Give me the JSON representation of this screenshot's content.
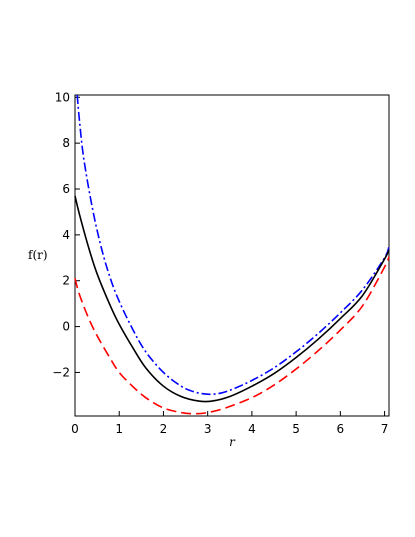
{
  "chart_data": {
    "type": "line",
    "xlabel": "r",
    "ylabel": "f(r)",
    "xlim": [
      0,
      7.1
    ],
    "ylim": [
      -3.9,
      10.1
    ],
    "x_ticks": [
      0,
      1,
      2,
      3,
      4,
      5,
      6,
      7
    ],
    "y_ticks": [
      -2,
      0,
      2,
      4,
      6,
      8,
      10
    ],
    "grid": false,
    "legend": "none",
    "series": [
      {
        "color": "#0000ff",
        "dash": "dash-dot",
        "points": [
          [
            0.05,
            10.1
          ],
          [
            0.1,
            9.0
          ],
          [
            0.2,
            7.3
          ],
          [
            0.4,
            5.1
          ],
          [
            0.6,
            3.4
          ],
          [
            0.8,
            2.1
          ],
          [
            1.0,
            1.1
          ],
          [
            1.3,
            -0.1
          ],
          [
            1.6,
            -1.1
          ],
          [
            2.0,
            -2.0
          ],
          [
            2.4,
            -2.6
          ],
          [
            2.7,
            -2.85
          ],
          [
            3.0,
            -2.95
          ],
          [
            3.3,
            -2.9
          ],
          [
            3.6,
            -2.7
          ],
          [
            4.0,
            -2.35
          ],
          [
            4.5,
            -1.8
          ],
          [
            5.0,
            -1.1
          ],
          [
            5.5,
            -0.3
          ],
          [
            6.0,
            0.6
          ],
          [
            6.5,
            1.6
          ],
          [
            7.0,
            3.0
          ],
          [
            7.1,
            3.5
          ]
        ]
      },
      {
        "color": "#000000",
        "dash": "solid",
        "points": [
          [
            0.0,
            5.7
          ],
          [
            0.1,
            4.9
          ],
          [
            0.3,
            3.5
          ],
          [
            0.5,
            2.3
          ],
          [
            0.8,
            0.9
          ],
          [
            1.0,
            0.1
          ],
          [
            1.3,
            -0.9
          ],
          [
            1.6,
            -1.8
          ],
          [
            2.0,
            -2.6
          ],
          [
            2.4,
            -3.05
          ],
          [
            2.8,
            -3.25
          ],
          [
            3.1,
            -3.25
          ],
          [
            3.5,
            -3.05
          ],
          [
            4.0,
            -2.6
          ],
          [
            4.5,
            -2.05
          ],
          [
            5.0,
            -1.35
          ],
          [
            5.5,
            -0.55
          ],
          [
            6.0,
            0.35
          ],
          [
            6.5,
            1.35
          ],
          [
            7.0,
            2.95
          ],
          [
            7.1,
            3.35
          ]
        ]
      },
      {
        "color": "#ff0000",
        "dash": "dashed",
        "points": [
          [
            0.0,
            2.1
          ],
          [
            0.1,
            1.4
          ],
          [
            0.3,
            0.4
          ],
          [
            0.5,
            -0.4
          ],
          [
            0.8,
            -1.4
          ],
          [
            1.0,
            -2.0
          ],
          [
            1.3,
            -2.6
          ],
          [
            1.6,
            -3.1
          ],
          [
            2.0,
            -3.55
          ],
          [
            2.4,
            -3.75
          ],
          [
            2.7,
            -3.8
          ],
          [
            3.0,
            -3.75
          ],
          [
            3.4,
            -3.55
          ],
          [
            4.0,
            -3.1
          ],
          [
            4.5,
            -2.55
          ],
          [
            5.0,
            -1.85
          ],
          [
            5.5,
            -1.05
          ],
          [
            6.0,
            -0.15
          ],
          [
            6.5,
            0.9
          ],
          [
            7.0,
            2.6
          ],
          [
            7.1,
            3.05
          ]
        ]
      }
    ]
  }
}
